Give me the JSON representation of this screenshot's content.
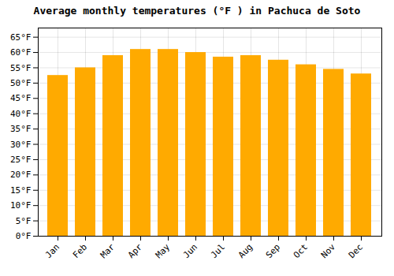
{
  "chart_data": {
    "type": "bar",
    "title": "Average monthly temperatures (°F ) in Pachuca de Soto",
    "categories": [
      "Jan",
      "Feb",
      "Mar",
      "Apr",
      "May",
      "Jun",
      "Jul",
      "Aug",
      "Sep",
      "Oct",
      "Nov",
      "Dec"
    ],
    "values": [
      52.5,
      55.0,
      59.0,
      61.0,
      61.0,
      60.0,
      58.5,
      59.0,
      57.5,
      56.0,
      54.5,
      53.0
    ],
    "color": "#FFAA00",
    "ylim": [
      0,
      68
    ],
    "yticks": [
      {
        "value": 0,
        "label": "0°F"
      },
      {
        "value": 5,
        "label": "5°F"
      },
      {
        "value": 10,
        "label": "10°F"
      },
      {
        "value": 15,
        "label": "15°F"
      },
      {
        "value": 20,
        "label": "20°F"
      },
      {
        "value": 25,
        "label": "25°F"
      },
      {
        "value": 30,
        "label": "30°F"
      },
      {
        "value": 35,
        "label": "35°F"
      },
      {
        "value": 40,
        "label": "40°F"
      },
      {
        "value": 45,
        "label": "45°F"
      },
      {
        "value": 50,
        "label": "50°F"
      },
      {
        "value": 55,
        "label": "55°F"
      },
      {
        "value": 60,
        "label": "60°F"
      },
      {
        "value": 65,
        "label": "65°F"
      }
    ],
    "grid": true
  }
}
